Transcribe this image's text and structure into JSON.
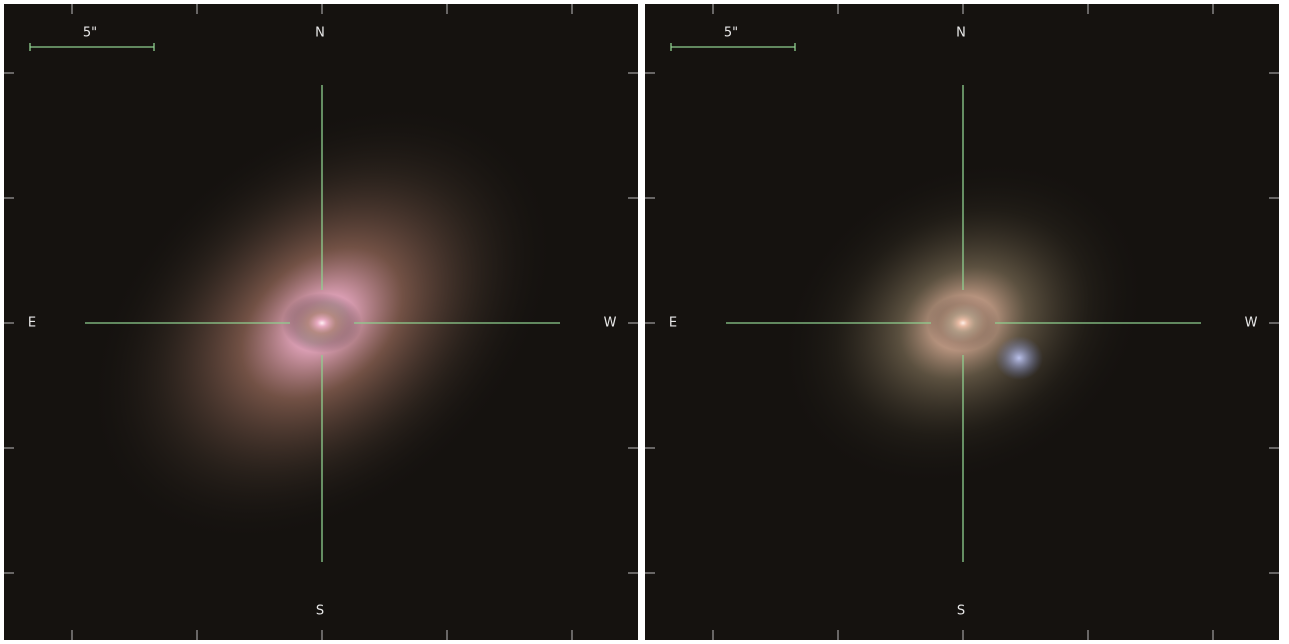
{
  "panels": [
    {
      "scale_label": "5\"",
      "north": "N",
      "south": "S",
      "east": "E",
      "west": "W"
    },
    {
      "scale_label": "5\"",
      "north": "N",
      "south": "S",
      "east": "E",
      "west": "W"
    }
  ]
}
